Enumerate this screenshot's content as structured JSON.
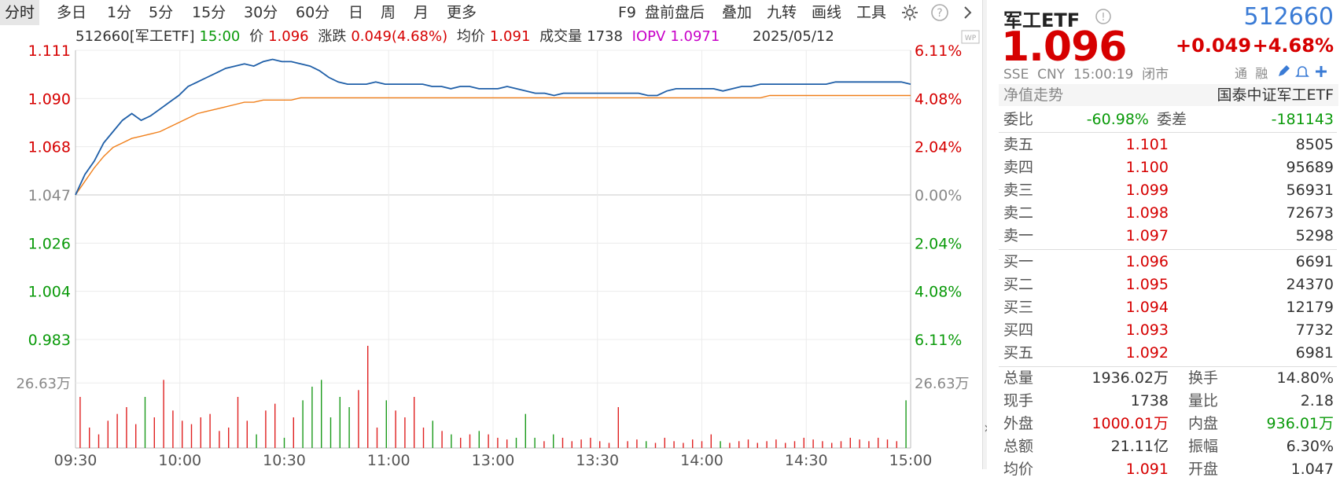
{
  "toolbar": {
    "tabs": [
      "分时",
      "多日",
      "1分",
      "5分",
      "15分",
      "30分",
      "60分",
      "日",
      "周",
      "月",
      "更多"
    ],
    "right_items": [
      "F9",
      "盘前盘后",
      "叠加",
      "九转",
      "画线",
      "工具"
    ]
  },
  "info": {
    "code_name": "512660[军工ETF]",
    "time": "15:00",
    "price_label": "价",
    "price": "1.096",
    "change_label": "涨跌",
    "change": "0.049(4.68%)",
    "avg_label": "均价",
    "avg": "1.091",
    "volume_label": "成交量",
    "volume": "1738",
    "iopv_label": "IOPV",
    "iopv": "1.0971",
    "date": "2025/05/12"
  },
  "axes": {
    "left_ticks": [
      "1.111",
      "1.090",
      "1.068",
      "1.047",
      "1.026",
      "1.004",
      "0.983"
    ],
    "right_ticks": [
      "6.11%",
      "4.08%",
      "2.04%",
      "0.00%",
      "2.04%",
      "4.08%",
      "6.11%"
    ],
    "vol_label_left": "26.63万",
    "vol_label_right": "26.63万",
    "time_ticks": [
      "09:30",
      "10:00",
      "10:30",
      "11:00",
      "13:00",
      "13:30",
      "14:00",
      "14:30",
      "15:00"
    ]
  },
  "chart_data": {
    "type": "line",
    "title": "",
    "ylim": [
      0.983,
      1.111
    ],
    "series": [
      {
        "name": "价",
        "color": "#1f5fa8",
        "values": [
          1.047,
          1.056,
          1.062,
          1.07,
          1.075,
          1.08,
          1.083,
          1.08,
          1.082,
          1.085,
          1.088,
          1.091,
          1.095,
          1.097,
          1.099,
          1.101,
          1.103,
          1.104,
          1.105,
          1.104,
          1.106,
          1.107,
          1.106,
          1.106,
          1.105,
          1.104,
          1.102,
          1.099,
          1.097,
          1.096,
          1.096,
          1.096,
          1.097,
          1.096,
          1.096,
          1.096,
          1.096,
          1.096,
          1.095,
          1.095,
          1.094,
          1.095,
          1.095,
          1.094,
          1.094,
          1.094,
          1.095,
          1.094,
          1.093,
          1.092,
          1.092,
          1.091,
          1.092,
          1.092,
          1.092,
          1.092,
          1.092,
          1.092,
          1.092,
          1.092,
          1.092,
          1.091,
          1.091,
          1.093,
          1.094,
          1.094,
          1.094,
          1.094,
          1.094,
          1.093,
          1.094,
          1.095,
          1.095,
          1.096,
          1.096,
          1.096,
          1.096,
          1.096,
          1.096,
          1.096,
          1.096,
          1.097,
          1.097,
          1.097,
          1.097,
          1.097,
          1.097,
          1.097,
          1.097,
          1.096
        ]
      },
      {
        "name": "均价",
        "color": "#f07f1a",
        "values": [
          1.047,
          1.053,
          1.059,
          1.064,
          1.068,
          1.07,
          1.072,
          1.073,
          1.074,
          1.075,
          1.077,
          1.079,
          1.081,
          1.083,
          1.084,
          1.085,
          1.086,
          1.087,
          1.088,
          1.088,
          1.089,
          1.089,
          1.089,
          1.089,
          1.09,
          1.09,
          1.09,
          1.09,
          1.09,
          1.09,
          1.09,
          1.09,
          1.09,
          1.09,
          1.09,
          1.09,
          1.09,
          1.09,
          1.09,
          1.09,
          1.09,
          1.09,
          1.09,
          1.09,
          1.09,
          1.09,
          1.09,
          1.09,
          1.09,
          1.09,
          1.09,
          1.09,
          1.09,
          1.09,
          1.09,
          1.09,
          1.09,
          1.09,
          1.09,
          1.09,
          1.09,
          1.09,
          1.09,
          1.09,
          1.09,
          1.09,
          1.09,
          1.09,
          1.09,
          1.09,
          1.09,
          1.09,
          1.09,
          1.09,
          1.091,
          1.091,
          1.091,
          1.091,
          1.091,
          1.091,
          1.091,
          1.091,
          1.091,
          1.091,
          1.091,
          1.091,
          1.091,
          1.091,
          1.091,
          1.091
        ]
      }
    ],
    "volume": [
      30,
      12,
      8,
      16,
      20,
      24,
      14,
      30,
      18,
      40,
      22,
      16,
      14,
      18,
      20,
      10,
      12,
      30,
      16,
      8,
      22,
      26,
      6,
      18,
      28,
      36,
      40,
      18,
      30,
      24,
      34,
      60,
      12,
      28,
      22,
      18,
      30,
      12,
      16,
      10,
      8,
      6,
      8,
      10,
      8,
      6,
      5,
      6,
      20,
      6,
      4,
      8,
      6,
      4,
      5,
      6,
      4,
      3,
      24,
      4,
      5,
      4,
      3,
      6,
      4,
      3,
      5,
      4,
      8,
      4,
      3,
      4,
      5,
      3,
      4,
      5,
      3,
      4,
      6,
      5,
      4,
      3,
      4,
      6,
      5,
      4,
      6,
      5,
      4,
      28
    ]
  },
  "panel": {
    "name": "军工ETF",
    "code": "512660",
    "price": "1.096",
    "change": "+0.049",
    "pct": "+4.68%",
    "exchange": "SSE",
    "currency": "CNY",
    "time": "15:00:19",
    "status": "闭市",
    "tag1": "通",
    "tag2": "融",
    "nav_label": "净值走势",
    "fund_name": "国泰中证军工ETF",
    "webi_label": "委比",
    "webi": "-60.98%",
    "weicha_label": "委差",
    "weicha": "-181143",
    "sells": [
      {
        "label": "卖五",
        "price": "1.101",
        "vol": "8505"
      },
      {
        "label": "卖四",
        "price": "1.100",
        "vol": "95689"
      },
      {
        "label": "卖三",
        "price": "1.099",
        "vol": "56931"
      },
      {
        "label": "卖二",
        "price": "1.098",
        "vol": "72673"
      },
      {
        "label": "卖一",
        "price": "1.097",
        "vol": "5298"
      }
    ],
    "buys": [
      {
        "label": "买一",
        "price": "1.096",
        "vol": "6691"
      },
      {
        "label": "买二",
        "price": "1.095",
        "vol": "24370"
      },
      {
        "label": "买三",
        "price": "1.094",
        "vol": "12179"
      },
      {
        "label": "买四",
        "price": "1.093",
        "vol": "7732"
      },
      {
        "label": "买五",
        "price": "1.092",
        "vol": "6981"
      }
    ],
    "stats": [
      {
        "l1": "总量",
        "v1": "1936.02万",
        "l2": "换手",
        "v2": "14.80%"
      },
      {
        "l1": "现手",
        "v1": "1738",
        "l2": "量比",
        "v2": "2.18"
      },
      {
        "l1": "外盘",
        "v1": "1000.01万",
        "l2": "内盘",
        "v2": "936.01万"
      },
      {
        "l1": "总额",
        "v1": "21.11亿",
        "l2": "振幅",
        "v2": "6.30%"
      },
      {
        "l1": "均价",
        "v1": "1.091",
        "l2": "开盘",
        "v2": "1.047"
      }
    ],
    "expand": "»"
  }
}
